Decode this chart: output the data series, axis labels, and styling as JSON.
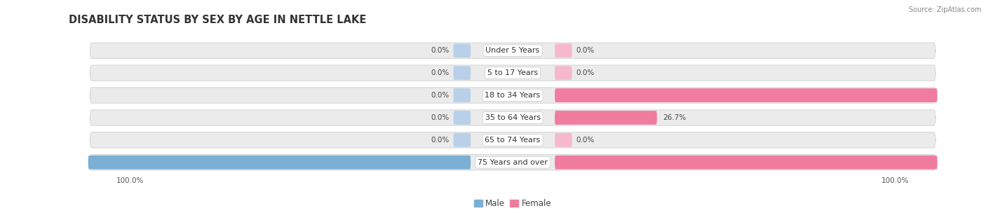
{
  "title": "DISABILITY STATUS BY SEX BY AGE IN NETTLE LAKE",
  "source": "Source: ZipAtlas.com",
  "categories": [
    "Under 5 Years",
    "5 to 17 Years",
    "18 to 34 Years",
    "35 to 64 Years",
    "65 to 74 Years",
    "75 Years and over"
  ],
  "male_values": [
    0.0,
    0.0,
    0.0,
    0.0,
    0.0,
    100.0
  ],
  "female_values": [
    0.0,
    0.0,
    100.0,
    26.7,
    0.0,
    100.0
  ],
  "male_color": "#7bafd4",
  "female_color": "#f07ca0",
  "male_stub_color": "#b8d0e8",
  "female_stub_color": "#f5b8cc",
  "row_bg_color": "#ebebeb",
  "row_bg_edge": "#d8d8d8",
  "max_value": 100.0,
  "title_fontsize": 10.5,
  "label_fontsize": 8.0,
  "value_fontsize": 7.5,
  "tick_fontsize": 7.5,
  "figsize": [
    14.06,
    3.04
  ],
  "n_rows": 6
}
